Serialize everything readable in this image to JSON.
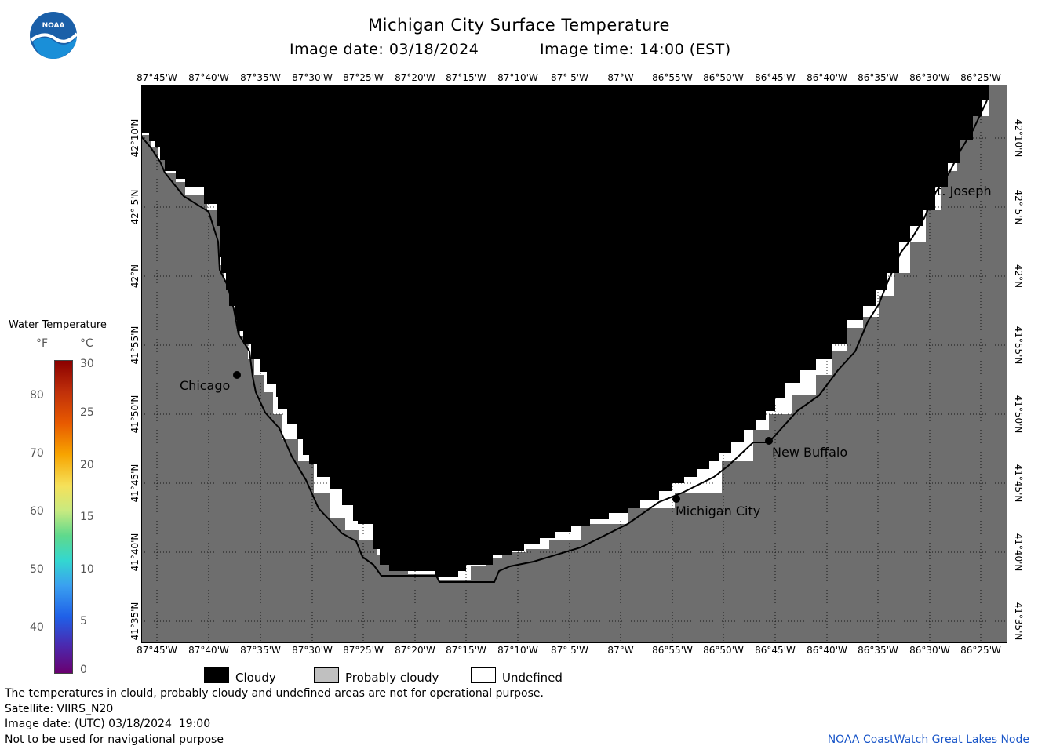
{
  "title": "Michigan City Surface Temperature",
  "image_date_label": "Image date: 03/18/2024",
  "image_time_label": "Image time: 14:00 (EST)",
  "longitude_labels": [
    "87°45'W",
    "87°40'W",
    "87°35'W",
    "87°30'W",
    "87°25'W",
    "87°20'W",
    "87°15'W",
    "87°10'W",
    "87° 5'W",
    "87°W",
    "86°55'W",
    "86°50'W",
    "86°45'W",
    "86°40'W",
    "86°35'W",
    "86°30'W",
    "86°25'W"
  ],
  "latitude_labels": [
    "42°10'N",
    "42° 5'N",
    "42°N",
    "41°55'N",
    "41°50'N",
    "41°45'N",
    "41°40'N",
    "41°35'N"
  ],
  "cities": {
    "chicago": "Chicago",
    "st_joseph": "St. Joseph",
    "new_buffalo": "New Buffalo",
    "michigan_city": "Michigan City"
  },
  "colorbar": {
    "title": "Water Temperature",
    "unit_f": "°F",
    "unit_c": "°C",
    "fahrenheit_ticks": [
      "80",
      "70",
      "60",
      "50",
      "40"
    ],
    "celsius_ticks": [
      "30",
      "25",
      "20",
      "15",
      "10",
      "5",
      "0"
    ]
  },
  "legend": {
    "cloudy": "Cloudy",
    "probably_cloudy": "Probably cloudy",
    "undefined": "Undefined",
    "colors": {
      "cloudy": "#000000",
      "probably_cloudy": "#c0c0c0",
      "undefined": "#ffffff",
      "land": "#6e6e6e"
    }
  },
  "footer": {
    "disclaimer": "The temperatures in clould, probably cloudy and undefined areas are not for operational purpose.",
    "satellite": "Satellite: VIIRS_N20",
    "utc_date": "Image date: (UTC) 03/18/2024  19:00",
    "nav_note": "Not to be used for navigational purpose",
    "credit": "NOAA CoastWatch Great Lakes Node"
  },
  "logo_text": "NOAA"
}
